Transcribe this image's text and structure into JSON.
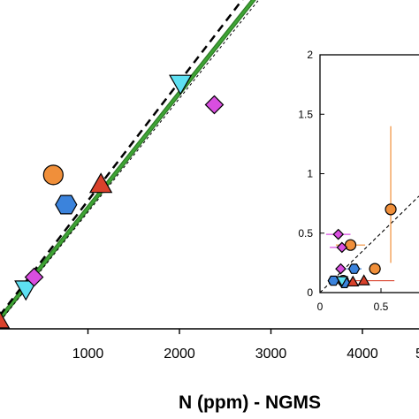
{
  "chart_data": [
    {
      "type": "scatter",
      "title": "",
      "xlabel": "N (ppm) - NGMS",
      "ylabel": "",
      "xlim": [
        0,
        5000
      ],
      "x_ticks": [
        "1000",
        "2000",
        "3000",
        "4000",
        "5"
      ],
      "grid": false,
      "series": [
        {
          "marker": "triangle-up",
          "color": "#d9412b",
          "points": [
            [
              60,
              60
            ],
            [
              1180,
              1200
            ]
          ]
        },
        {
          "marker": "triangle-down",
          "color": "#5ee0f2",
          "points": [
            [
              360,
              320
            ],
            [
              2050,
              2050
            ]
          ]
        },
        {
          "marker": "diamond",
          "color": "#d94ee0",
          "points": [
            [
              450,
              420
            ],
            [
              2420,
              1870
            ]
          ]
        },
        {
          "marker": "hexagon",
          "color": "#3b83dc",
          "points": [
            [
              800,
              1030
            ],
            [
              3090,
              3100
            ]
          ]
        },
        {
          "marker": "circle",
          "color": "#f08f3a",
          "points": [
            [
              660,
              1280
            ]
          ]
        }
      ],
      "lines": [
        {
          "name": "green",
          "style": "solid",
          "color": "#3fa535"
        },
        {
          "name": "black",
          "style": "dashed",
          "color": "#000000"
        }
      ]
    },
    {
      "type": "scatter",
      "title": "",
      "xlim": [
        0,
        0.8
      ],
      "ylim": [
        0,
        2
      ],
      "x_ticks": [
        "0",
        "0.5"
      ],
      "y_ticks": [
        "0",
        "0.5",
        "1",
        "1.5",
        "2"
      ],
      "series": [
        {
          "marker": "circle",
          "color": "#f08f3a",
          "points": [
            [
              0.58,
              0.7
            ],
            [
              0.25,
              0.4
            ],
            [
              0.45,
              0.2
            ],
            [
              0.19,
              0.1
            ]
          ]
        },
        {
          "marker": "diamond",
          "color": "#d94ee0",
          "points": [
            [
              0.15,
              0.49
            ],
            [
              0.18,
              0.38
            ],
            [
              0.17,
              0.2
            ]
          ]
        },
        {
          "marker": "hexagon",
          "color": "#3b83dc",
          "points": [
            [
              0.11,
              0.1
            ],
            [
              0.28,
              0.2
            ],
            [
              0.2,
              0.08
            ]
          ]
        },
        {
          "marker": "triangle-down",
          "color": "#5ee0f2",
          "points": [
            [
              0.18,
              0.1
            ]
          ]
        },
        {
          "marker": "triangle-up",
          "color": "#d9412b",
          "points": [
            [
              0.36,
              0.1
            ],
            [
              0.27,
              0.09
            ]
          ]
        }
      ],
      "lines": [
        {
          "name": "1:1",
          "style": "dashed",
          "color": "#000000"
        }
      ]
    }
  ]
}
